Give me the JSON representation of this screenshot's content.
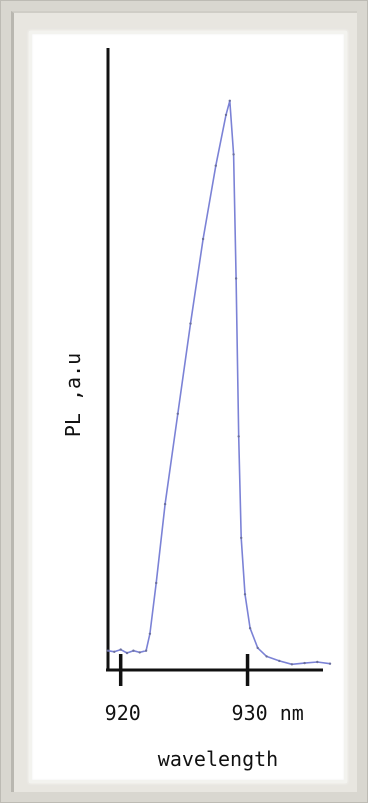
{
  "chart_data": {
    "type": "line",
    "title": "",
    "xlabel": "wavelength",
    "ylabel": "PL ,a.u",
    "xticks": [
      {
        "value": 920,
        "label": "920"
      },
      {
        "value": 930,
        "label": "930 nm"
      }
    ],
    "xlim": [
      919,
      936.5
    ],
    "ylim": [
      0,
      1.0
    ],
    "grid": false,
    "legend": "none",
    "line_color": "#7b82d6",
    "axis_color": "#111111",
    "series": [
      {
        "x": [
          919.0,
          919.5,
          920.0,
          920.5,
          921.0,
          921.5,
          922.0,
          922.3,
          922.8,
          923.5,
          924.5,
          925.5,
          926.5,
          927.5,
          928.3,
          928.6,
          928.9,
          929.1,
          929.3,
          929.5,
          929.8,
          930.2,
          930.8,
          931.5,
          932.5,
          933.5,
          934.5,
          935.5,
          936.5
        ],
        "y": [
          0.02,
          0.018,
          0.022,
          0.016,
          0.02,
          0.017,
          0.02,
          0.05,
          0.14,
          0.28,
          0.44,
          0.6,
          0.75,
          0.88,
          0.97,
          0.995,
          0.9,
          0.68,
          0.4,
          0.22,
          0.12,
          0.06,
          0.025,
          0.01,
          0.002,
          -0.004,
          -0.002,
          0.0,
          -0.003
        ]
      }
    ]
  }
}
